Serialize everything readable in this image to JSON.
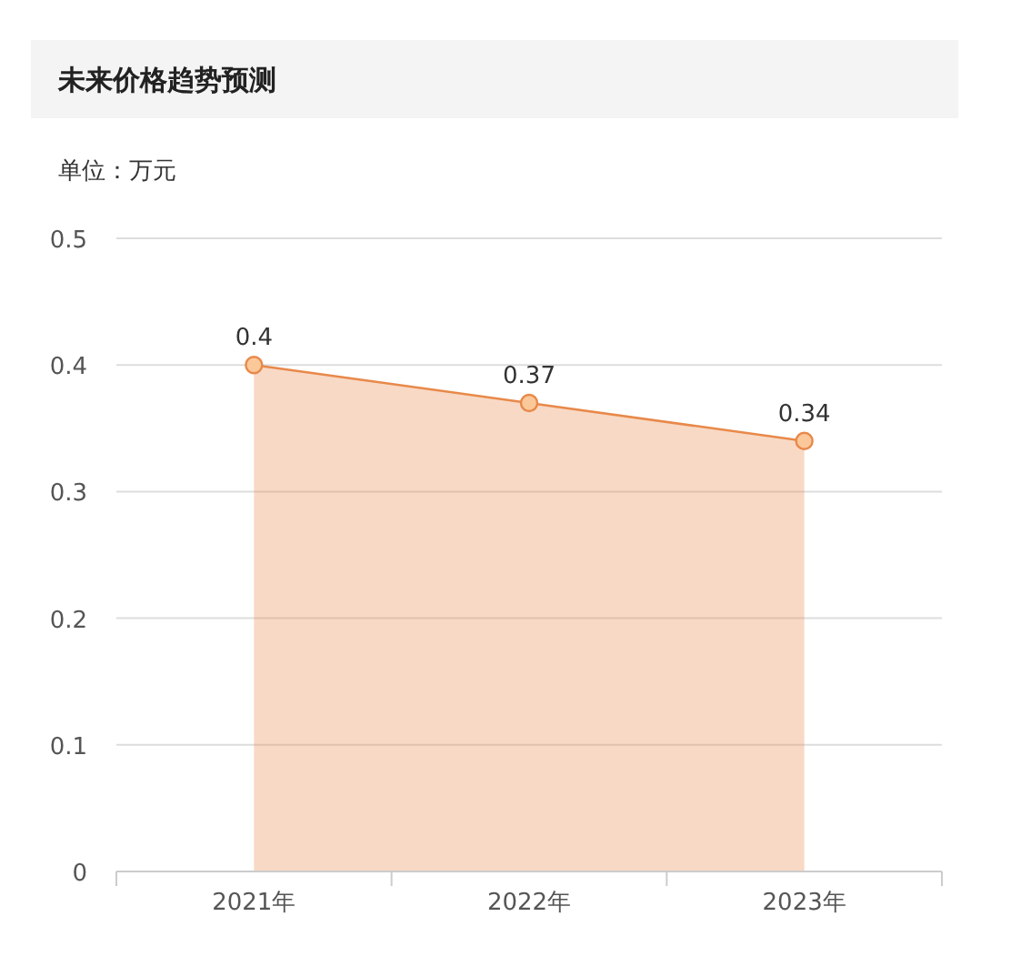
{
  "chart_data": {
    "type": "area",
    "title": "未来价格趋势预测",
    "ylabel": "单位：万元",
    "categories": [
      "2021年",
      "2022年",
      "2023年"
    ],
    "series": [
      {
        "color": "#e8894a",
        "values": [
          0.4,
          0.37,
          0.34
        ]
      }
    ],
    "ylim": [
      0,
      0.5
    ],
    "yticks": [
      0,
      0.1,
      0.2,
      0.3,
      0.4,
      0.5
    ],
    "grid": "y",
    "marker": "circle",
    "data_labels": true
  }
}
